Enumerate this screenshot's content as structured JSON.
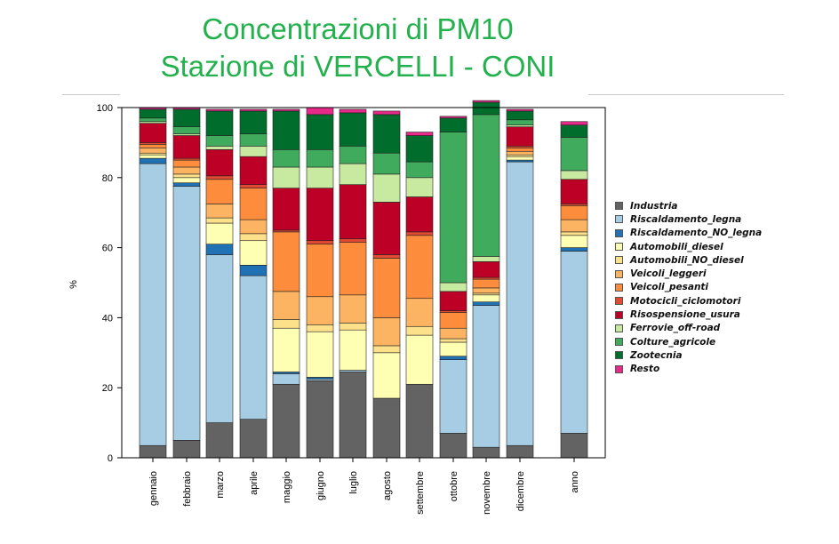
{
  "chart_data": {
    "type": "bar",
    "stacked": true,
    "title": "Concentrazioni di PM10",
    "subtitle": "Stazione di VERCELLI - CONI",
    "ylabel": "%",
    "ylim": [
      0,
      100
    ],
    "yticks": [
      0,
      20,
      40,
      60,
      80,
      100
    ],
    "legend_position": "right",
    "categories": [
      "gennaio",
      "febbraio",
      "marzo",
      "aprile",
      "maggio",
      "giugno",
      "luglio",
      "agosto",
      "settembre",
      "ottobre",
      "novembre",
      "dicembre",
      "anno"
    ],
    "series": [
      {
        "name": "Industria",
        "color": "#636363",
        "values": [
          3.5,
          5,
          10,
          11,
          21,
          22,
          24.5,
          17,
          21,
          7,
          3,
          3.5,
          7
        ]
      },
      {
        "name": "Riscaldamento_legna",
        "color": "#a6cde3",
        "values": [
          80.5,
          72.5,
          48,
          41,
          3,
          0.5,
          0.5,
          0,
          0,
          21,
          40.5,
          81,
          52
        ]
      },
      {
        "name": "Riscaldamento_NO_legna",
        "color": "#2171b5",
        "values": [
          1.5,
          1,
          3,
          3,
          0.5,
          0.5,
          0,
          0,
          0,
          1,
          1,
          0.5,
          1
        ]
      },
      {
        "name": "Automobili_diesel",
        "color": "#ffffb3",
        "values": [
          1,
          1.5,
          6,
          7,
          12.5,
          13,
          11.5,
          13,
          14,
          4,
          2,
          1,
          3.5
        ]
      },
      {
        "name": "Automobili_NO_diesel",
        "color": "#fde08a",
        "values": [
          0.5,
          1,
          1.5,
          2,
          2.5,
          2,
          2,
          2,
          2.5,
          1,
          0.5,
          0.5,
          1
        ]
      },
      {
        "name": "Veicoli_leggeri",
        "color": "#fdb462",
        "values": [
          1.5,
          2,
          4,
          4,
          8,
          8,
          8,
          8,
          8,
          3,
          1.5,
          1,
          3.5
        ]
      },
      {
        "name": "Veicoli_pesanti",
        "color": "#fd8d3c",
        "values": [
          1,
          2,
          7,
          9,
          17,
          15,
          15,
          17,
          18,
          4.5,
          2.5,
          1,
          4
        ]
      },
      {
        "name": "Motocicli_ciclomotori",
        "color": "#e34a33",
        "values": [
          0.5,
          0.5,
          1,
          1,
          0.5,
          1,
          1,
          1,
          1,
          0.5,
          0.5,
          0.5,
          0.5
        ]
      },
      {
        "name": "Risospensione_usura",
        "color": "#bd0026",
        "values": [
          5.5,
          6.5,
          7.5,
          8,
          12,
          15,
          15.5,
          15,
          10,
          5.5,
          4.5,
          5.5,
          7
        ]
      },
      {
        "name": "Ferrovie_off-road",
        "color": "#c7e9a0",
        "values": [
          0.5,
          0.5,
          1,
          3,
          6,
          6,
          6,
          8,
          5.5,
          2.5,
          1.5,
          0.5,
          2.5
        ]
      },
      {
        "name": "Colture_agricole",
        "color": "#41ab5d",
        "values": [
          1,
          2,
          3,
          3.5,
          5,
          5,
          5,
          6,
          4.5,
          43,
          40.5,
          1.5,
          9.5
        ]
      },
      {
        "name": "Zootecnia",
        "color": "#006d2c",
        "values": [
          2.5,
          5,
          7,
          6.5,
          11,
          10,
          9.5,
          11,
          7.5,
          4,
          3.5,
          2.5,
          3.5
        ]
      },
      {
        "name": "Resto",
        "color": "#e7298a",
        "values": [
          0.5,
          0.5,
          0.5,
          0.5,
          0.5,
          2,
          1,
          1,
          1,
          0.5,
          0.5,
          0.5,
          1
        ]
      }
    ]
  }
}
